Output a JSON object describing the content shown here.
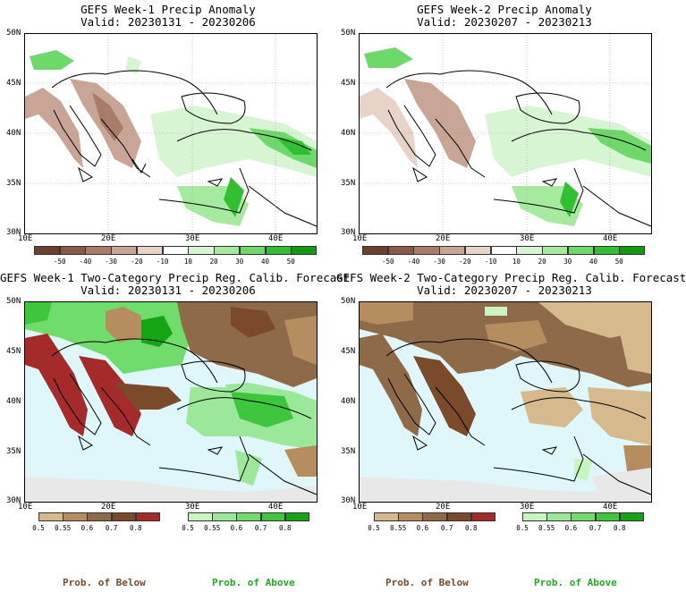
{
  "panels": [
    {
      "title1": "GEFS Week-1 Precip Anomaly",
      "title2": "Valid: 20230131 - 20230206"
    },
    {
      "title1": "GEFS Week-2 Precip Anomaly",
      "title2": "Valid: 20230207 - 20230213"
    },
    {
      "title1": "GEFS Week-1 Two-Category Precip Reg. Calib. Forecast",
      "title2": "Valid: 20230131 - 20230206"
    },
    {
      "title1": "GEFS Week-2 Two-Category Precip Reg. Calib. Forecast",
      "title2": "Valid: 20230207 - 20230213"
    }
  ],
  "lat_labels": [
    "50N",
    "45N",
    "40N",
    "35N",
    "30N"
  ],
  "lon_labels": [
    "10E",
    "20E",
    "30E",
    "40E"
  ],
  "anomaly_colorbar": {
    "labels": [
      "-50",
      "-40",
      "-30",
      "-20",
      "-10",
      "10",
      "20",
      "30",
      "40",
      "50"
    ],
    "colors": [
      "#6b3e2e",
      "#8a5a48",
      "#a97c6a",
      "#c9a596",
      "#e8d3c8",
      "#ffffff",
      "#d8f5d3",
      "#a6eaa0",
      "#6ed86a",
      "#32c032",
      "#119a11"
    ]
  },
  "below_colorbar": {
    "labels": [
      "0.5",
      "0.55",
      "0.6",
      "0.7",
      "0.8"
    ],
    "colors": [
      "#d6b98c",
      "#b58d5e",
      "#8f6a48",
      "#7a4a2a",
      "#a52a2a"
    ]
  },
  "above_colorbar": {
    "labels": [
      "0.5",
      "0.55",
      "0.6",
      "0.7",
      "0.8"
    ],
    "colors": [
      "#c8f5c0",
      "#9ce89a",
      "#6fdc6c",
      "#3ec63c",
      "#13a513"
    ]
  },
  "legend": {
    "below": "Prob. of Below",
    "above": "Prob. of Above"
  },
  "colors": {
    "below_text": "#7a4a2a",
    "above_text": "#22aa22",
    "sea": "#dff7fb",
    "land_no_data": "#e8e8e8"
  }
}
